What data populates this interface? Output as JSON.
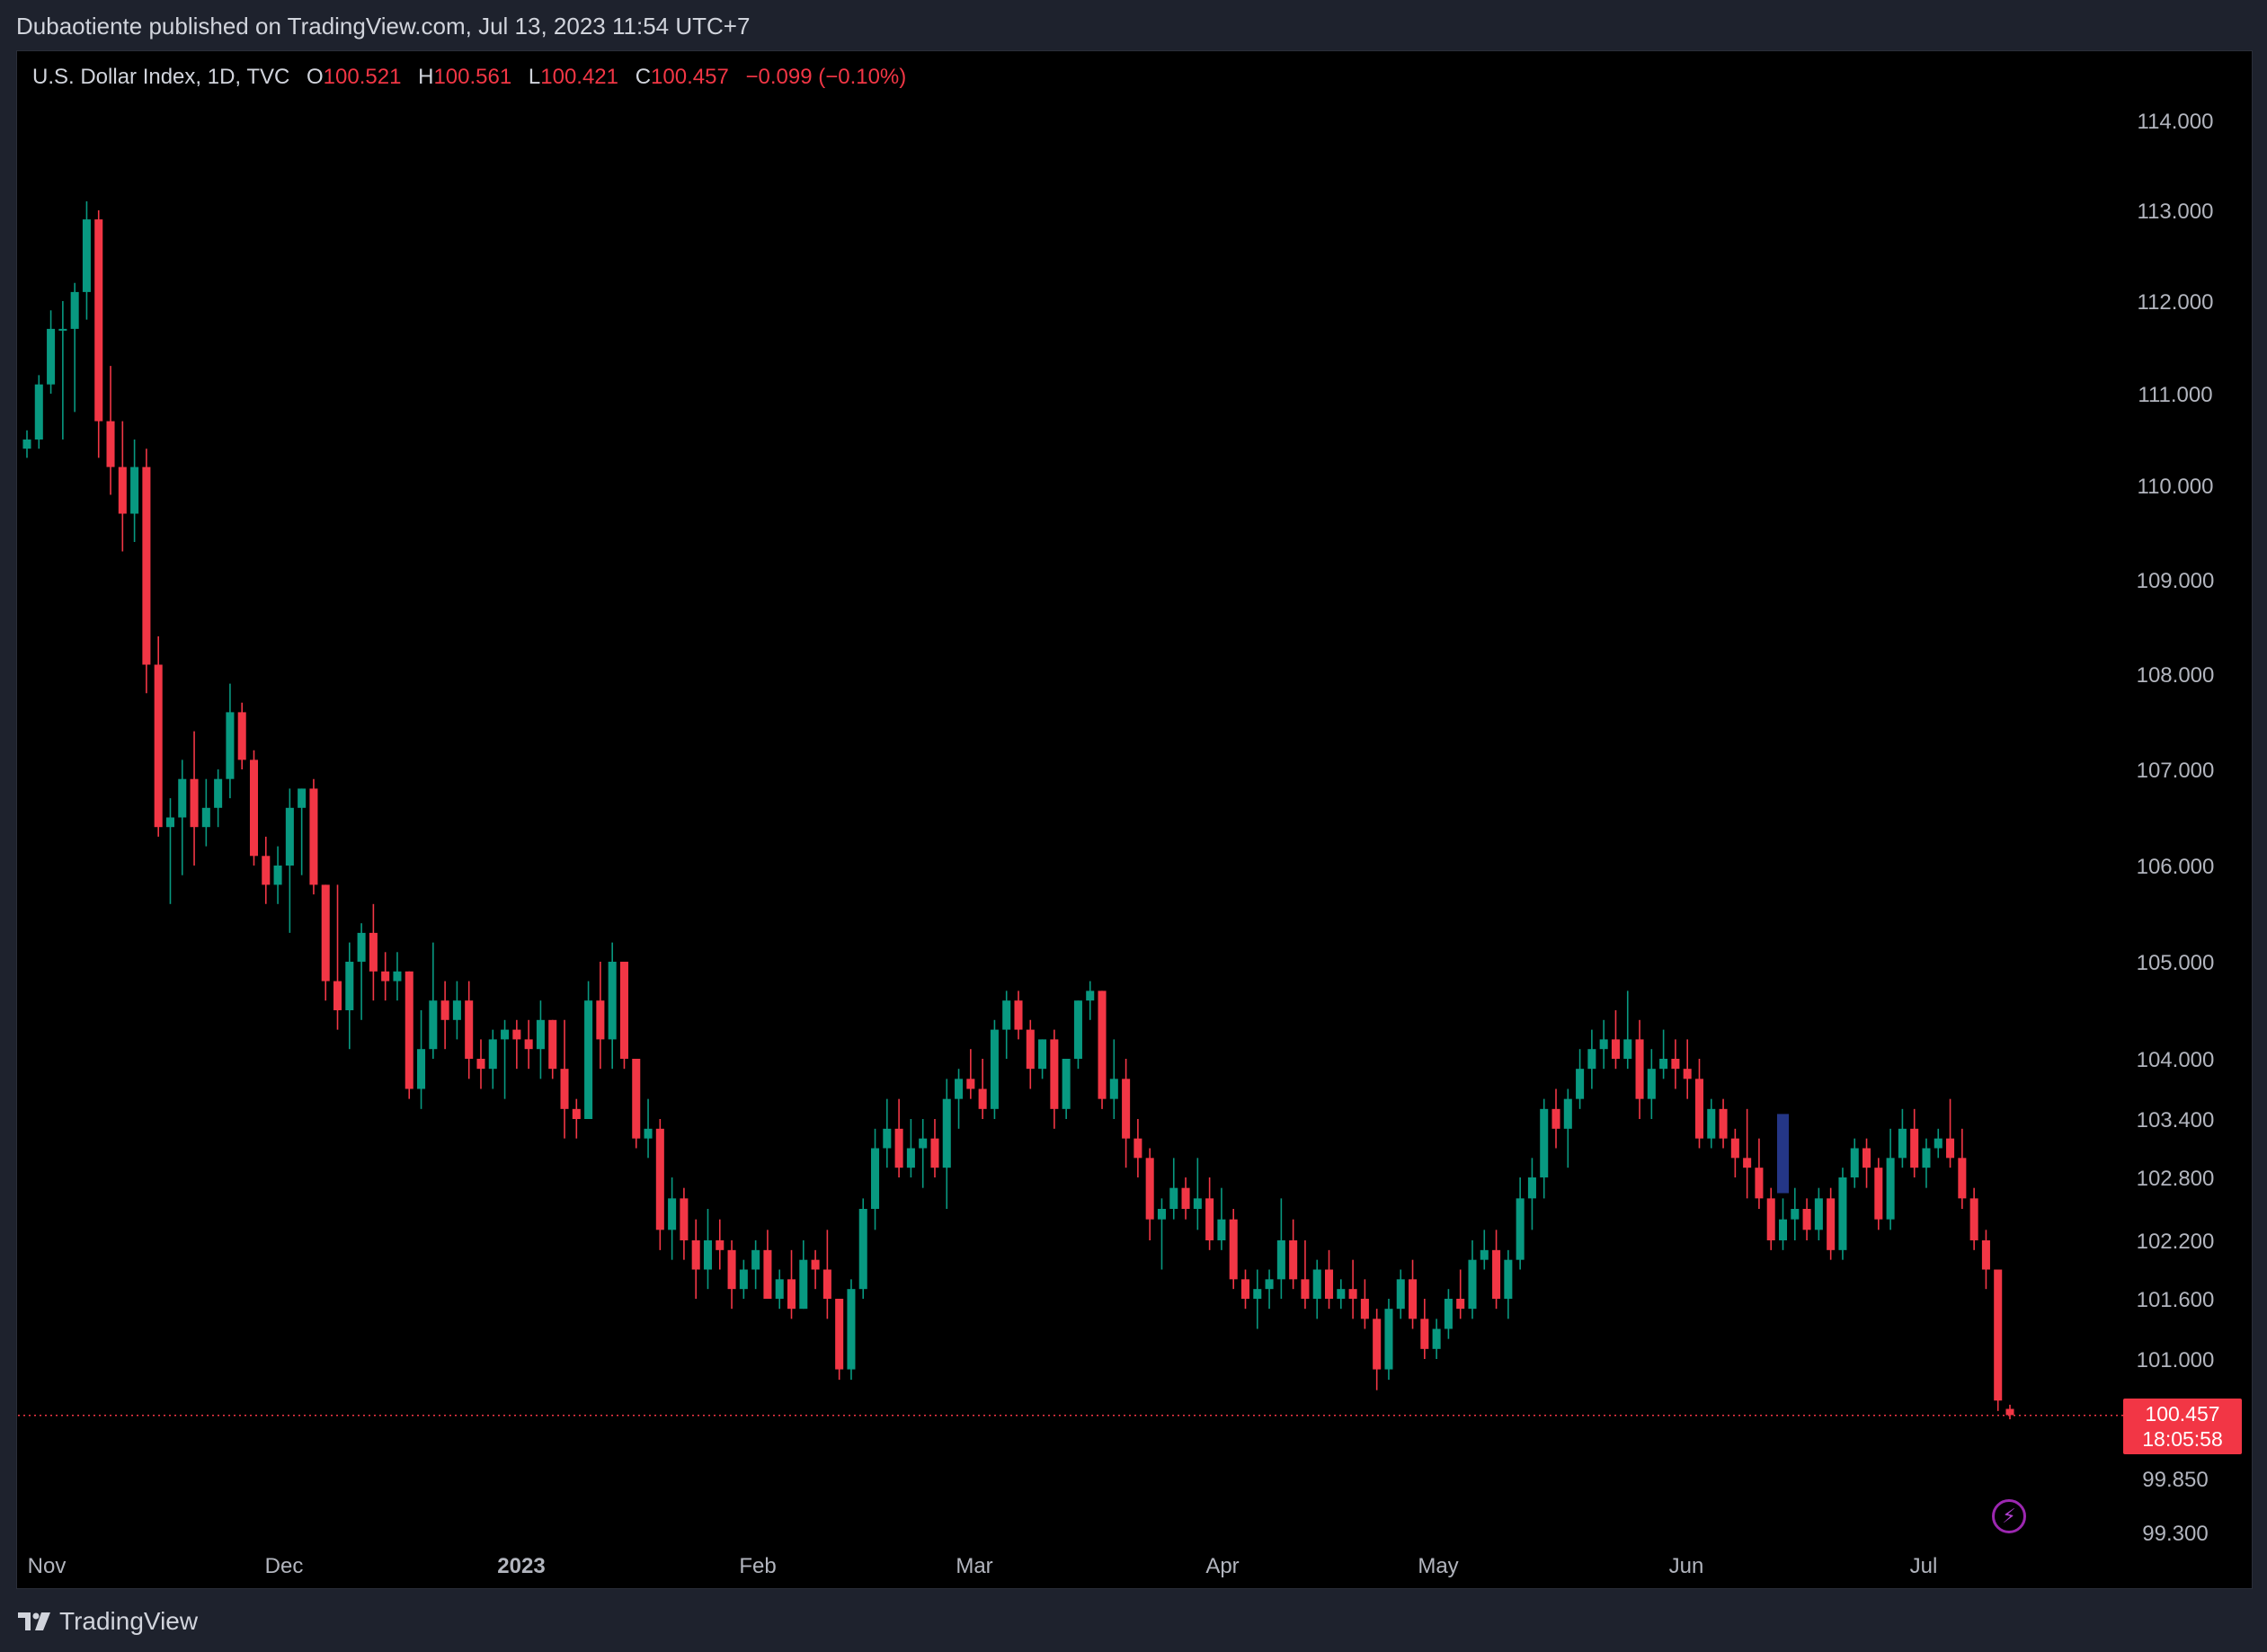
{
  "header": {
    "published": "Dubaotiente published on TradingView.com, Jul 13, 2023 11:54 UTC+7"
  },
  "legend": {
    "symbol": "U.S. Dollar Index, 1D, TVC",
    "o_label": "O",
    "o_value": "100.521",
    "h_label": "H",
    "h_value": "100.561",
    "l_label": "L",
    "l_value": "100.421",
    "c_label": "C",
    "c_value": "100.457",
    "change": "−0.099 (−0.10%)"
  },
  "price_tag": {
    "price": "100.457",
    "countdown": "18:05:58"
  },
  "footer": {
    "brand": "TradingView"
  },
  "colors": {
    "up": "#089981",
    "down": "#f23645",
    "background": "#000000",
    "text": "#d1d4dc",
    "highlight": "#2a3f9e"
  },
  "icons": {
    "flash": "flash-icon",
    "logo": "tradingview-logo-icon"
  },
  "chart_data": {
    "type": "candlestick",
    "title": "U.S. Dollar Index, 1D, TVC",
    "x_ticks": [
      "Nov",
      "Dec",
      "2023",
      "Feb",
      "Mar",
      "Apr",
      "May",
      "Jun",
      "Jul"
    ],
    "y_ticks": [
      "114.000",
      "113.000",
      "112.000",
      "111.000",
      "110.000",
      "109.000",
      "108.000",
      "107.000",
      "106.000",
      "105.000",
      "104.000",
      "103.400",
      "102.800",
      "102.200",
      "101.600",
      "101.000",
      "99.850",
      "99.300"
    ],
    "last_price": 100.457,
    "ohlc": [
      [
        110.4,
        110.6,
        110.3,
        110.5
      ],
      [
        110.5,
        111.2,
        110.4,
        111.1
      ],
      [
        111.1,
        111.9,
        111.0,
        111.7
      ],
      [
        111.7,
        112.0,
        110.5,
        111.7
      ],
      [
        111.7,
        112.2,
        110.8,
        112.1
      ],
      [
        112.1,
        113.1,
        111.8,
        112.9
      ],
      [
        112.9,
        113.0,
        110.3,
        110.7
      ],
      [
        110.7,
        111.3,
        109.9,
        110.2
      ],
      [
        110.2,
        110.7,
        109.3,
        109.7
      ],
      [
        109.7,
        110.5,
        109.4,
        110.2
      ],
      [
        110.2,
        110.4,
        107.8,
        108.1
      ],
      [
        108.1,
        108.4,
        106.3,
        106.4
      ],
      [
        106.4,
        106.7,
        105.6,
        106.5
      ],
      [
        106.5,
        107.1,
        105.9,
        106.9
      ],
      [
        106.9,
        107.4,
        106.0,
        106.4
      ],
      [
        106.4,
        106.9,
        106.2,
        106.6
      ],
      [
        106.6,
        107.0,
        106.4,
        106.9
      ],
      [
        106.9,
        107.9,
        106.7,
        107.6
      ],
      [
        107.6,
        107.7,
        107.0,
        107.1
      ],
      [
        107.1,
        107.2,
        106.0,
        106.1
      ],
      [
        106.1,
        106.3,
        105.6,
        105.8
      ],
      [
        105.8,
        106.2,
        105.6,
        106.0
      ],
      [
        106.0,
        106.8,
        105.3,
        106.6
      ],
      [
        106.6,
        106.8,
        105.9,
        106.8
      ],
      [
        106.8,
        106.9,
        105.7,
        105.8
      ],
      [
        105.8,
        105.8,
        104.6,
        104.8
      ],
      [
        104.8,
        105.8,
        104.3,
        104.5
      ],
      [
        104.5,
        105.2,
        104.1,
        105.0
      ],
      [
        105.0,
        105.4,
        104.4,
        105.3
      ],
      [
        105.3,
        105.6,
        104.6,
        104.9
      ],
      [
        104.9,
        105.1,
        104.6,
        104.8
      ],
      [
        104.8,
        105.1,
        104.6,
        104.9
      ],
      [
        104.9,
        104.9,
        103.6,
        103.7
      ],
      [
        103.7,
        104.5,
        103.5,
        104.1
      ],
      [
        104.1,
        105.2,
        104.0,
        104.6
      ],
      [
        104.6,
        104.8,
        104.1,
        104.4
      ],
      [
        104.4,
        104.8,
        104.2,
        104.6
      ],
      [
        104.6,
        104.8,
        103.8,
        104.0
      ],
      [
        104.0,
        104.2,
        103.7,
        103.9
      ],
      [
        103.9,
        104.3,
        103.7,
        104.2
      ],
      [
        104.2,
        104.4,
        103.6,
        104.3
      ],
      [
        104.3,
        104.4,
        103.9,
        104.2
      ],
      [
        104.2,
        104.4,
        103.9,
        104.1
      ],
      [
        104.1,
        104.6,
        103.8,
        104.4
      ],
      [
        104.4,
        104.4,
        103.8,
        103.9
      ],
      [
        103.9,
        104.4,
        103.2,
        103.5
      ],
      [
        103.5,
        103.6,
        103.2,
        103.4
      ],
      [
        103.4,
        104.8,
        103.4,
        104.6
      ],
      [
        104.6,
        105.0,
        103.9,
        104.2
      ],
      [
        104.2,
        105.2,
        103.9,
        105.0
      ],
      [
        105.0,
        105.0,
        103.9,
        104.0
      ],
      [
        104.0,
        104.0,
        103.1,
        103.2
      ],
      [
        103.2,
        103.6,
        103.0,
        103.3
      ],
      [
        103.3,
        103.4,
        102.1,
        102.3
      ],
      [
        102.3,
        102.8,
        102.0,
        102.6
      ],
      [
        102.6,
        102.7,
        102.0,
        102.2
      ],
      [
        102.2,
        102.4,
        101.6,
        101.9
      ],
      [
        101.9,
        102.5,
        101.7,
        102.2
      ],
      [
        102.2,
        102.4,
        101.9,
        102.1
      ],
      [
        102.1,
        102.2,
        101.5,
        101.7
      ],
      [
        101.7,
        102.0,
        101.6,
        101.9
      ],
      [
        101.9,
        102.2,
        101.7,
        102.1
      ],
      [
        102.1,
        102.3,
        101.6,
        101.6
      ],
      [
        101.6,
        101.9,
        101.5,
        101.8
      ],
      [
        101.8,
        102.1,
        101.4,
        101.5
      ],
      [
        101.5,
        102.2,
        101.5,
        102.0
      ],
      [
        102.0,
        102.1,
        101.7,
        101.9
      ],
      [
        101.9,
        102.3,
        101.4,
        101.6
      ],
      [
        101.6,
        101.6,
        100.8,
        100.9
      ],
      [
        100.9,
        101.8,
        100.8,
        101.7
      ],
      [
        101.7,
        102.6,
        101.6,
        102.5
      ],
      [
        102.5,
        103.3,
        102.3,
        103.1
      ],
      [
        103.1,
        103.6,
        102.9,
        103.3
      ],
      [
        103.3,
        103.6,
        102.8,
        102.9
      ],
      [
        102.9,
        103.4,
        102.8,
        103.1
      ],
      [
        103.1,
        103.4,
        102.7,
        103.2
      ],
      [
        103.2,
        103.4,
        102.8,
        102.9
      ],
      [
        102.9,
        103.8,
        102.5,
        103.6
      ],
      [
        103.6,
        103.9,
        103.3,
        103.8
      ],
      [
        103.8,
        104.1,
        103.6,
        103.7
      ],
      [
        103.7,
        104.0,
        103.4,
        103.5
      ],
      [
        103.5,
        104.4,
        103.4,
        104.3
      ],
      [
        104.3,
        104.7,
        104.0,
        104.6
      ],
      [
        104.6,
        104.7,
        104.2,
        104.3
      ],
      [
        104.3,
        104.4,
        103.7,
        103.9
      ],
      [
        103.9,
        104.2,
        103.8,
        104.2
      ],
      [
        104.2,
        104.3,
        103.3,
        103.5
      ],
      [
        103.5,
        104.0,
        103.4,
        104.0
      ],
      [
        104.0,
        104.6,
        103.9,
        104.6
      ],
      [
        104.6,
        104.8,
        104.4,
        104.7
      ],
      [
        104.7,
        104.7,
        103.5,
        103.6
      ],
      [
        103.6,
        104.2,
        103.4,
        103.8
      ],
      [
        103.8,
        104.0,
        102.9,
        103.2
      ],
      [
        103.2,
        103.4,
        102.8,
        103.0
      ],
      [
        103.0,
        103.1,
        102.2,
        102.4
      ],
      [
        102.4,
        102.6,
        101.9,
        102.5
      ],
      [
        102.5,
        103.0,
        102.4,
        102.7
      ],
      [
        102.7,
        102.8,
        102.4,
        102.5
      ],
      [
        102.5,
        103.0,
        102.3,
        102.6
      ],
      [
        102.6,
        102.8,
        102.1,
        102.2
      ],
      [
        102.2,
        102.7,
        102.1,
        102.4
      ],
      [
        102.4,
        102.5,
        101.7,
        101.8
      ],
      [
        101.8,
        101.9,
        101.5,
        101.6
      ],
      [
        101.6,
        101.9,
        101.3,
        101.7
      ],
      [
        101.7,
        101.9,
        101.5,
        101.8
      ],
      [
        101.8,
        102.6,
        101.6,
        102.2
      ],
      [
        102.2,
        102.4,
        101.7,
        101.8
      ],
      [
        101.8,
        102.2,
        101.5,
        101.6
      ],
      [
        101.6,
        102.0,
        101.4,
        101.9
      ],
      [
        101.9,
        102.1,
        101.5,
        101.6
      ],
      [
        101.6,
        101.8,
        101.5,
        101.7
      ],
      [
        101.7,
        102.0,
        101.4,
        101.6
      ],
      [
        101.6,
        101.8,
        101.3,
        101.4
      ],
      [
        101.4,
        101.5,
        100.7,
        100.9
      ],
      [
        100.9,
        101.6,
        100.8,
        101.5
      ],
      [
        101.5,
        101.9,
        101.4,
        101.8
      ],
      [
        101.8,
        102.0,
        101.3,
        101.4
      ],
      [
        101.4,
        101.6,
        101.0,
        101.1
      ],
      [
        101.1,
        101.4,
        101.0,
        101.3
      ],
      [
        101.3,
        101.7,
        101.2,
        101.6
      ],
      [
        101.6,
        101.9,
        101.4,
        101.5
      ],
      [
        101.5,
        102.2,
        101.4,
        102.0
      ],
      [
        102.0,
        102.3,
        101.9,
        102.1
      ],
      [
        102.1,
        102.3,
        101.5,
        101.6
      ],
      [
        101.6,
        102.1,
        101.4,
        102.0
      ],
      [
        102.0,
        102.8,
        101.9,
        102.6
      ],
      [
        102.6,
        103.0,
        102.3,
        102.8
      ],
      [
        102.8,
        103.6,
        102.6,
        103.5
      ],
      [
        103.5,
        103.7,
        103.1,
        103.3
      ],
      [
        103.3,
        103.7,
        102.9,
        103.6
      ],
      [
        103.6,
        104.1,
        103.5,
        103.9
      ],
      [
        103.9,
        104.3,
        103.7,
        104.1
      ],
      [
        104.1,
        104.4,
        103.9,
        104.2
      ],
      [
        104.2,
        104.5,
        103.9,
        104.0
      ],
      [
        104.0,
        104.7,
        103.9,
        104.2
      ],
      [
        104.2,
        104.4,
        103.4,
        103.6
      ],
      [
        103.6,
        104.1,
        103.4,
        103.9
      ],
      [
        103.9,
        104.3,
        103.8,
        104.0
      ],
      [
        104.0,
        104.2,
        103.7,
        103.9
      ],
      [
        103.9,
        104.2,
        103.6,
        103.8
      ],
      [
        103.8,
        104.0,
        103.1,
        103.2
      ],
      [
        103.2,
        103.6,
        103.1,
        103.5
      ],
      [
        103.5,
        103.6,
        103.1,
        103.2
      ],
      [
        103.2,
        103.3,
        102.8,
        103.0
      ],
      [
        103.0,
        103.5,
        102.6,
        102.9
      ],
      [
        102.9,
        103.2,
        102.5,
        102.6
      ],
      [
        102.6,
        102.7,
        102.1,
        102.2
      ],
      [
        102.2,
        102.6,
        102.1,
        102.4
      ],
      [
        102.4,
        102.7,
        102.2,
        102.5
      ],
      [
        102.5,
        102.6,
        102.2,
        102.3
      ],
      [
        102.3,
        102.7,
        102.2,
        102.6
      ],
      [
        102.6,
        102.7,
        102.0,
        102.1
      ],
      [
        102.1,
        102.9,
        102.0,
        102.8
      ],
      [
        102.8,
        103.2,
        102.7,
        103.1
      ],
      [
        103.1,
        103.2,
        102.7,
        102.9
      ],
      [
        102.9,
        103.0,
        102.3,
        102.4
      ],
      [
        102.4,
        103.3,
        102.3,
        103.0
      ],
      [
        103.0,
        103.5,
        102.9,
        103.3
      ],
      [
        103.3,
        103.5,
        102.8,
        102.9
      ],
      [
        102.9,
        103.2,
        102.7,
        103.1
      ],
      [
        103.1,
        103.3,
        103.0,
        103.2
      ],
      [
        103.2,
        103.6,
        102.9,
        103.0
      ],
      [
        103.0,
        103.3,
        102.5,
        102.6
      ],
      [
        102.6,
        102.7,
        102.1,
        102.2
      ],
      [
        102.2,
        102.3,
        101.7,
        101.9
      ],
      [
        101.9,
        101.9,
        100.5,
        100.6
      ],
      [
        100.52,
        100.56,
        100.42,
        100.46
      ]
    ]
  }
}
